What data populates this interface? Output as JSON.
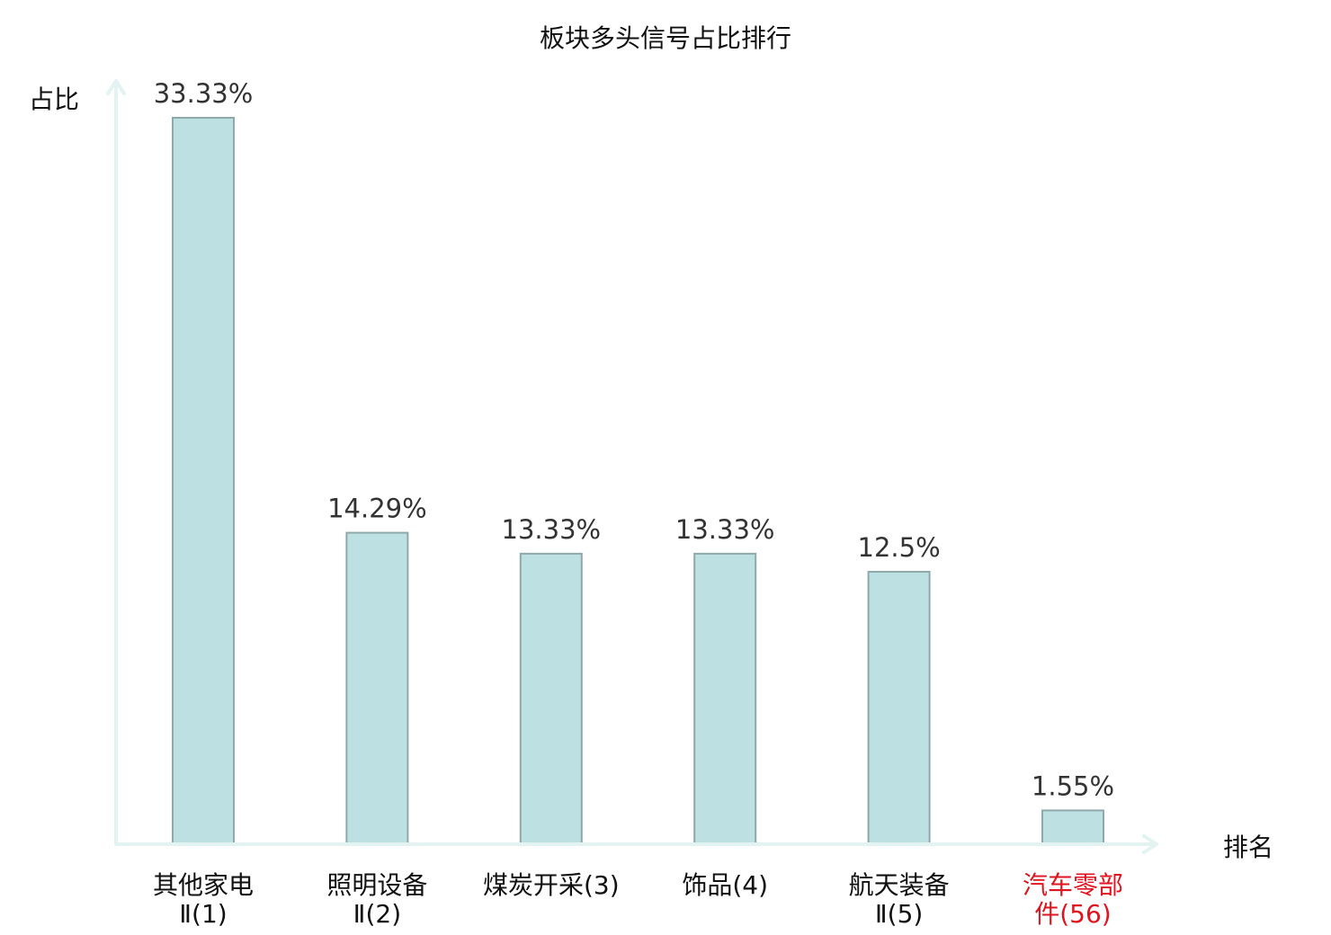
{
  "chart_data": {
    "type": "bar",
    "title": "板块多头信号占比排行",
    "ylabel": "占比",
    "xlabel": "排名",
    "ylim": [
      0,
      35
    ],
    "grid": false,
    "legend": "none",
    "bar_color": "#bde0e3",
    "bar_edge_color": "#8fa8aa",
    "axis_color": "#e2f3f1",
    "highlight_color": "#e0141e",
    "categories": [
      {
        "lines": [
          "其他家电",
          "Ⅱ(1)"
        ],
        "highlight": false
      },
      {
        "lines": [
          "照明设备",
          "Ⅱ(2)"
        ],
        "highlight": false
      },
      {
        "lines": [
          "煤炭开采(3)"
        ],
        "highlight": false
      },
      {
        "lines": [
          "饰品(4)"
        ],
        "highlight": false
      },
      {
        "lines": [
          "航天装备",
          "Ⅱ(5)"
        ],
        "highlight": false
      },
      {
        "lines": [
          "汽车零部",
          "件(56)"
        ],
        "highlight": true
      }
    ],
    "values": [
      33.33,
      14.29,
      13.33,
      13.33,
      12.5,
      1.55
    ],
    "value_labels": [
      "33.33%",
      "14.29%",
      "13.33%",
      "13.33%",
      "12.5%",
      "1.55%"
    ]
  }
}
